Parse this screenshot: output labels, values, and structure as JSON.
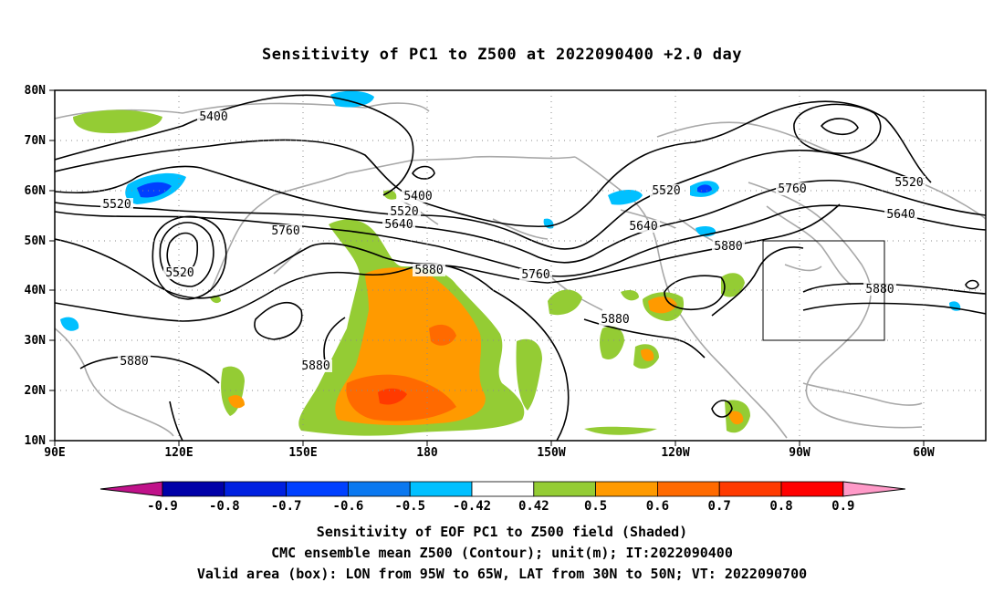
{
  "title": "Sensitivity of PC1 to Z500 at 2022090400 +2.0 day",
  "map": {
    "lat_labels": [
      "80N",
      "70N",
      "60N",
      "50N",
      "40N",
      "30N",
      "20N",
      "10N"
    ],
    "lon_labels": [
      "90E",
      "120E",
      "150E",
      "180",
      "150W",
      "120W",
      "90W",
      "60W"
    ],
    "contour_labels": [
      {
        "text": "5400"
      },
      {
        "text": "5400"
      },
      {
        "text": "5520"
      },
      {
        "text": "5520"
      },
      {
        "text": "5520"
      },
      {
        "text": "5520"
      },
      {
        "text": "5520"
      },
      {
        "text": "5640"
      },
      {
        "text": "5640"
      },
      {
        "text": "5640"
      },
      {
        "text": "5760"
      },
      {
        "text": "5760"
      },
      {
        "text": "5760"
      },
      {
        "text": "5880"
      },
      {
        "text": "5880"
      },
      {
        "text": "5880"
      },
      {
        "text": "5880"
      },
      {
        "text": "5880"
      },
      {
        "text": "5880"
      }
    ],
    "valid_box": {
      "lon_from": "95W",
      "lon_to": "65W",
      "lat_from": "30N",
      "lat_to": "50N"
    }
  },
  "colorbar": {
    "ticks": [
      "-0.9",
      "-0.8",
      "-0.7",
      "-0.6",
      "-0.5",
      "-0.42",
      "0.42",
      "0.5",
      "0.6",
      "0.7",
      "0.8",
      "0.9"
    ],
    "colors": [
      "#c0128a",
      "#0000a8",
      "#0020e0",
      "#0040ff",
      "#0a78f0",
      "#00c0ff",
      "#ffffff",
      "#94cc34",
      "#ff9a00",
      "#ff6a00",
      "#ff3a00",
      "#ff0000",
      "#ff9ac8"
    ]
  },
  "captions": {
    "line1": "Sensitivity of EOF PC1 to Z500 field (Shaded)",
    "line2": "CMC ensemble mean Z500 (Contour); unit(m); IT:2022090400",
    "line3": "Valid area (box): LON from 95W to 65W, LAT from 30N to 50N; VT: 2022090700"
  }
}
